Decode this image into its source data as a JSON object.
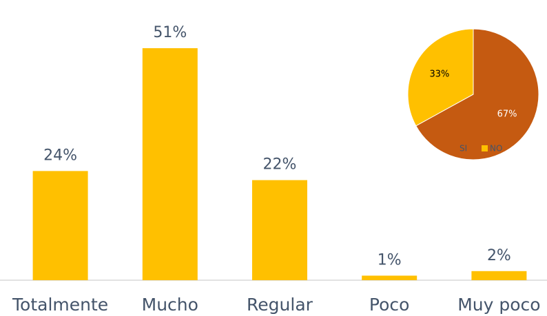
{
  "chart_data": [
    {
      "type": "bar",
      "categories": [
        "Totalmente",
        "Mucho",
        "Regular",
        "Poco",
        "Muy poco"
      ],
      "values": [
        24,
        51,
        22,
        1,
        2
      ],
      "value_labels": [
        "24%",
        "51%",
        "22%",
        "1%",
        "2%"
      ],
      "color": "#ffc000"
    },
    {
      "type": "pie",
      "categories": [
        "SI",
        "NO"
      ],
      "values": [
        67,
        33
      ],
      "value_labels": [
        "67%",
        "33%"
      ],
      "colors": [
        "#c55a11",
        "#ffc000"
      ],
      "label_colors": [
        "#ffffff",
        "#000000"
      ]
    }
  ]
}
